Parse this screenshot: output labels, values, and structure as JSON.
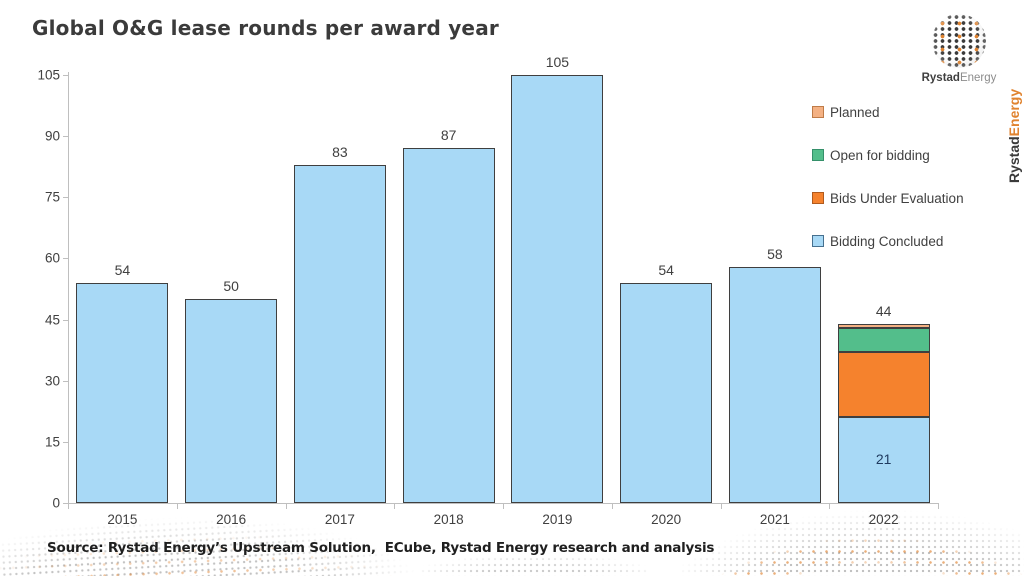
{
  "title": "Global O&G lease rounds per award year",
  "brand": {
    "logo_bold": "Rystad",
    "logo_light": "Energy",
    "vertical_bold": "Rystad",
    "vertical_light": "Energy",
    "accent_orange": "#e0832f",
    "accent_dark": "#3a3a3a"
  },
  "source_note": "Source: Rystad Energy’s Upstream Solution,  ECube, Rystad Energy research and analysis",
  "legend": {
    "position": "right",
    "items": [
      {
        "label": "Planned",
        "fill": "#f4b183",
        "border": "#bf7b47"
      },
      {
        "label": "Open for bidding",
        "fill": "#53be8b",
        "border": "#35906a"
      },
      {
        "label": "Bids Under Evaluation",
        "fill": "#f5822d",
        "border": "#b05a1e"
      },
      {
        "label": "Bidding Concluded",
        "fill": "#a8d9f6",
        "border": "#46708f"
      }
    ]
  },
  "chart_data": {
    "type": "bar",
    "stacked": true,
    "title": "Global O&G lease rounds per award year",
    "categories": [
      "2015",
      "2016",
      "2017",
      "2018",
      "2019",
      "2020",
      "2021",
      "2022"
    ],
    "series": [
      {
        "name": "Bidding Concluded",
        "color": "#a8d9f6",
        "values": [
          54,
          50,
          83,
          87,
          105,
          54,
          58,
          21
        ]
      },
      {
        "name": "Bids Under Evaluation",
        "color": "#f5822d",
        "values": [
          0,
          0,
          0,
          0,
          0,
          0,
          0,
          16
        ]
      },
      {
        "name": "Open for bidding",
        "color": "#53be8b",
        "values": [
          0,
          0,
          0,
          0,
          0,
          0,
          0,
          6
        ]
      },
      {
        "name": "Planned",
        "color": "#f4b183",
        "values": [
          0,
          0,
          0,
          0,
          0,
          0,
          0,
          1
        ]
      }
    ],
    "total_labels": [
      "54",
      "50",
      "83",
      "87",
      "105",
      "54",
      "58",
      "44"
    ],
    "inside_label": {
      "category_index": 7,
      "text": "21",
      "color": "#1f3a5f"
    },
    "xlabel": "",
    "ylabel": "",
    "ylim": [
      0,
      105
    ],
    "yticks": [
      0,
      15,
      30,
      45,
      60,
      75,
      90,
      105
    ],
    "grid": false,
    "legend_position": "right",
    "bar_border_color": "#3f3f3f",
    "axis_color": "#bfbfbf",
    "label_color": "#404040"
  }
}
